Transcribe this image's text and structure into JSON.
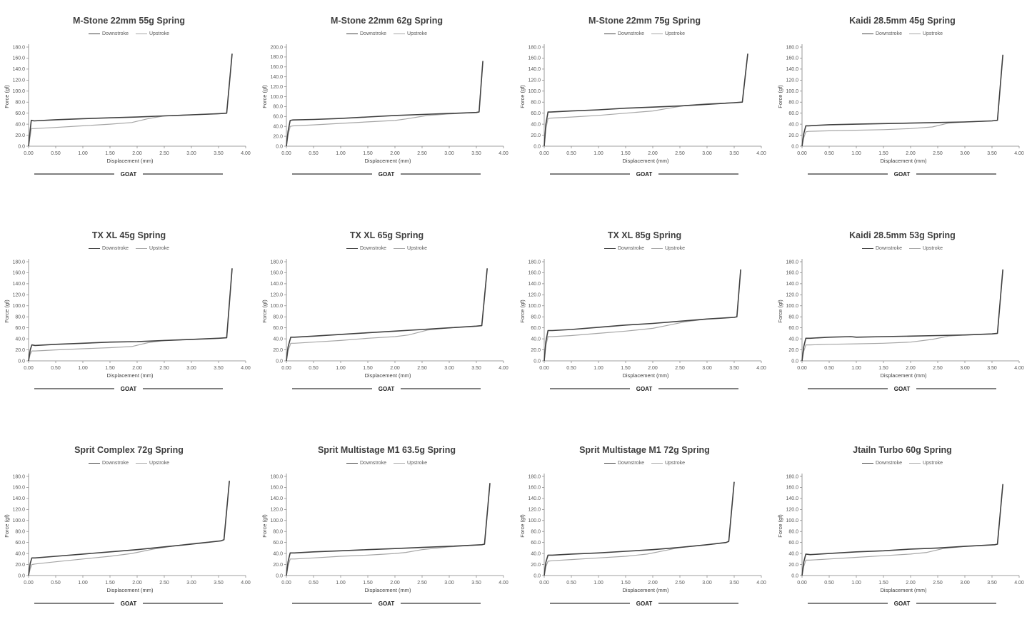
{
  "legend": {
    "down": "Downstroke",
    "up": "Upstroke"
  },
  "colors": {
    "down": "#404040",
    "up": "#a6a6a6",
    "axis": "#7f7f7f"
  },
  "chart_data": [
    {
      "type": "line",
      "title": "M-Stone 22mm 55g Spring",
      "xlabel": "Displacement (mm)",
      "ylabel": "Force (gf)",
      "footer": "GOAT",
      "xlim": [
        0,
        4
      ],
      "ylim": [
        0,
        180
      ],
      "ystep": 20,
      "xticks": [
        "0.00",
        "0.50",
        "1.00",
        "1.50",
        "2.00",
        "2.50",
        "3.00",
        "3.50",
        "4.00"
      ],
      "series": [
        {
          "name": "Downstroke",
          "x": [
            0,
            0.03,
            0.05,
            0.1,
            0.5,
            1.0,
            1.5,
            2.0,
            2.5,
            3.0,
            3.5,
            3.65,
            3.75
          ],
          "y": [
            0,
            30,
            47,
            46,
            48,
            50,
            51.5,
            53,
            55,
            57,
            59,
            60,
            168
          ]
        },
        {
          "name": "Upstroke",
          "x": [
            0,
            0.03,
            0.05,
            0.1,
            0.5,
            1.0,
            1.5,
            1.9,
            2.2,
            2.5,
            3.0,
            3.5,
            3.65,
            3.75
          ],
          "y": [
            0,
            18,
            32,
            32,
            34,
            37,
            40,
            43,
            50,
            55,
            57,
            59,
            60,
            168
          ]
        }
      ]
    },
    {
      "type": "line",
      "title": "M-Stone 22mm 62g Spring",
      "xlabel": "Displacement (mm)",
      "ylabel": "Force (gf)",
      "footer": "GOAT",
      "xlim": [
        0,
        4
      ],
      "ylim": [
        0,
        200
      ],
      "ystep": 20,
      "xticks": [
        "0.00",
        "0.50",
        "1.00",
        "1.50",
        "2.00",
        "2.50",
        "3.00",
        "3.50",
        "4.00"
      ],
      "series": [
        {
          "name": "Downstroke",
          "x": [
            0,
            0.03,
            0.07,
            0.12,
            0.5,
            1.0,
            1.5,
            2.0,
            2.5,
            3.0,
            3.5,
            3.55,
            3.62
          ],
          "y": [
            0,
            30,
            52,
            53,
            54,
            56,
            59,
            62,
            64,
            66,
            68,
            69,
            172
          ]
        },
        {
          "name": "Upstroke",
          "x": [
            0,
            0.03,
            0.07,
            0.12,
            0.5,
            1.0,
            1.5,
            2.0,
            2.2,
            2.6,
            3.0,
            3.5,
            3.55,
            3.62
          ],
          "y": [
            0,
            22,
            40,
            41,
            43,
            46,
            49,
            52,
            55,
            62,
            65,
            68,
            69,
            172
          ]
        }
      ]
    },
    {
      "type": "line",
      "title": "M-Stone 22mm 75g Spring",
      "xlabel": "Displacement (mm)",
      "ylabel": "Force (gf)",
      "footer": "GOAT",
      "xlim": [
        0,
        4
      ],
      "ylim": [
        0,
        180
      ],
      "ystep": 20,
      "xticks": [
        "0.00",
        "0.50",
        "1.00",
        "1.50",
        "2.00",
        "2.50",
        "3.00",
        "3.50",
        "4.00"
      ],
      "series": [
        {
          "name": "Downstroke",
          "x": [
            0,
            0.03,
            0.07,
            0.12,
            0.5,
            1.0,
            1.5,
            2.0,
            2.5,
            3.0,
            3.5,
            3.65,
            3.75
          ],
          "y": [
            0,
            40,
            62,
            62,
            64,
            66,
            69,
            71,
            73,
            76,
            79,
            80,
            168
          ]
        },
        {
          "name": "Upstroke",
          "x": [
            0,
            0.03,
            0.07,
            0.12,
            0.5,
            1.0,
            1.5,
            2.0,
            2.3,
            2.6,
            3.0,
            3.5,
            3.65,
            3.75
          ],
          "y": [
            0,
            32,
            50,
            51,
            53,
            56,
            60,
            64,
            69,
            74,
            77,
            79,
            80,
            168
          ]
        }
      ]
    },
    {
      "type": "line",
      "title": "Kaidi 28.5mm 45g Spring",
      "xlabel": "Displacement (mm)",
      "ylabel": "Force (gf)",
      "footer": "GOAT",
      "xlim": [
        0,
        4
      ],
      "ylim": [
        0,
        180
      ],
      "ystep": 20,
      "xticks": [
        "0.00",
        "0.50",
        "1.00",
        "1.50",
        "2.00",
        "2.50",
        "3.00",
        "3.50",
        "4.00"
      ],
      "series": [
        {
          "name": "Downstroke",
          "x": [
            0,
            0.03,
            0.07,
            0.12,
            0.5,
            1.0,
            1.5,
            2.0,
            2.5,
            3.0,
            3.5,
            3.6,
            3.7
          ],
          "y": [
            0,
            22,
            37,
            37,
            39,
            40,
            41,
            42,
            43,
            44,
            46,
            47,
            166
          ]
        },
        {
          "name": "Upstroke",
          "x": [
            0,
            0.03,
            0.07,
            0.12,
            0.5,
            1.0,
            1.5,
            2.0,
            2.4,
            2.7,
            3.0,
            3.5,
            3.6,
            3.7
          ],
          "y": [
            0,
            15,
            26,
            27,
            28,
            29,
            30,
            32,
            35,
            42,
            44,
            46,
            47,
            166
          ]
        }
      ]
    },
    {
      "type": "line",
      "title": "TX XL 45g Spring",
      "xlabel": "Displacement (mm)",
      "ylabel": "Force (gf)",
      "footer": "GOAT",
      "xlim": [
        0,
        4
      ],
      "ylim": [
        0,
        180
      ],
      "ystep": 20,
      "xticks": [
        "0.00",
        "0.50",
        "1.00",
        "1.50",
        "2.00",
        "2.50",
        "3.00",
        "3.50",
        "4.00"
      ],
      "series": [
        {
          "name": "Downstroke",
          "x": [
            0,
            0.03,
            0.06,
            0.12,
            0.5,
            1.0,
            1.5,
            2.0,
            2.5,
            3.0,
            3.5,
            3.65,
            3.75
          ],
          "y": [
            0,
            20,
            29,
            28,
            30,
            32,
            34,
            35,
            37,
            39,
            41,
            42,
            168
          ]
        },
        {
          "name": "Upstroke",
          "x": [
            0,
            0.03,
            0.06,
            0.12,
            0.5,
            1.0,
            1.5,
            1.9,
            2.2,
            2.5,
            3.0,
            3.5,
            3.65,
            3.75
          ],
          "y": [
            0,
            12,
            18,
            18,
            20,
            22,
            24,
            26,
            33,
            37,
            39,
            41,
            42,
            168
          ]
        }
      ]
    },
    {
      "type": "line",
      "title": "TX XL 65g Spring",
      "xlabel": "Displacement (mm)",
      "ylabel": "Force (gf)",
      "footer": "GOAT",
      "xlim": [
        0,
        4
      ],
      "ylim": [
        0,
        180
      ],
      "ystep": 20,
      "xticks": [
        "0.00",
        "0.50",
        "1.00",
        "1.50",
        "2.00",
        "2.50",
        "3.00",
        "3.50",
        "4.00"
      ],
      "series": [
        {
          "name": "Downstroke",
          "x": [
            0,
            0.03,
            0.08,
            0.15,
            0.5,
            1.0,
            1.5,
            2.0,
            2.5,
            3.0,
            3.5,
            3.6,
            3.7
          ],
          "y": [
            0,
            25,
            43,
            43,
            45,
            48,
            51,
            54,
            57,
            60,
            63,
            64,
            168
          ]
        },
        {
          "name": "Upstroke",
          "x": [
            0,
            0.03,
            0.08,
            0.15,
            0.5,
            1.0,
            1.5,
            2.0,
            2.25,
            2.6,
            3.0,
            3.5,
            3.6,
            3.7
          ],
          "y": [
            0,
            18,
            32,
            32,
            34,
            37,
            41,
            44,
            47,
            56,
            60,
            63,
            64,
            168
          ]
        }
      ]
    },
    {
      "type": "line",
      "title": "TX XL 85g Spring",
      "xlabel": "Displacement (mm)",
      "ylabel": "Force (gf)",
      "footer": "GOAT",
      "xlim": [
        0,
        4
      ],
      "ylim": [
        0,
        180
      ],
      "ystep": 20,
      "xticks": [
        "0.00",
        "0.50",
        "1.00",
        "1.50",
        "2.00",
        "2.50",
        "3.00",
        "3.50",
        "4.00"
      ],
      "series": [
        {
          "name": "Downstroke",
          "x": [
            0,
            0.03,
            0.07,
            0.15,
            0.5,
            1.0,
            1.5,
            2.0,
            2.5,
            3.0,
            3.5,
            3.55,
            3.62
          ],
          "y": [
            0,
            35,
            55,
            55,
            57,
            61,
            65,
            68,
            72,
            76,
            79,
            80,
            166
          ]
        },
        {
          "name": "Upstroke",
          "x": [
            0,
            0.03,
            0.07,
            0.15,
            0.5,
            1.0,
            1.5,
            2.0,
            2.3,
            2.6,
            3.0,
            3.5,
            3.55,
            3.62
          ],
          "y": [
            0,
            28,
            44,
            44,
            46,
            50,
            54,
            59,
            65,
            71,
            76,
            79,
            80,
            166
          ]
        }
      ]
    },
    {
      "type": "line",
      "title": "Kaidi 28.5mm 53g Spring",
      "xlabel": "Displacement (mm)",
      "ylabel": "Force (gf)",
      "footer": "GOAT",
      "xlim": [
        0,
        4
      ],
      "ylim": [
        0,
        180
      ],
      "ystep": 20,
      "xticks": [
        "0.00",
        "0.50",
        "1.00",
        "1.50",
        "2.00",
        "2.50",
        "3.00",
        "3.50",
        "4.00"
      ],
      "series": [
        {
          "name": "Downstroke",
          "x": [
            0,
            0.03,
            0.07,
            0.15,
            0.5,
            0.9,
            1.0,
            1.5,
            2.0,
            2.5,
            3.0,
            3.5,
            3.6,
            3.7
          ],
          "y": [
            0,
            25,
            41,
            41,
            43,
            44,
            43,
            44,
            45,
            46,
            47,
            49,
            50,
            166
          ]
        },
        {
          "name": "Upstroke",
          "x": [
            0,
            0.03,
            0.07,
            0.15,
            0.5,
            1.0,
            1.5,
            2.0,
            2.4,
            2.7,
            3.0,
            3.5,
            3.6,
            3.7
          ],
          "y": [
            0,
            17,
            29,
            29,
            30,
            31,
            32,
            34,
            39,
            45,
            47,
            49,
            50,
            166
          ]
        }
      ]
    },
    {
      "type": "line",
      "title": "Sprit Complex 72g Spring",
      "xlabel": "Displacement (mm)",
      "ylabel": "Force (gf)",
      "footer": "GOAT",
      "xlim": [
        0,
        4
      ],
      "ylim": [
        0,
        180
      ],
      "ystep": 20,
      "xticks": [
        "0.00",
        "0.50",
        "1.00",
        "1.50",
        "2.00",
        "2.50",
        "3.00",
        "3.50",
        "4.00"
      ],
      "series": [
        {
          "name": "Downstroke",
          "x": [
            0,
            0.03,
            0.06,
            0.12,
            0.5,
            1.0,
            1.5,
            2.0,
            2.5,
            3.0,
            3.55,
            3.6,
            3.7
          ],
          "y": [
            0,
            22,
            32,
            32,
            35,
            39,
            43,
            47,
            52,
            57,
            63,
            65,
            172
          ]
        },
        {
          "name": "Upstroke",
          "x": [
            0,
            0.03,
            0.06,
            0.12,
            0.5,
            1.0,
            1.5,
            1.9,
            2.3,
            2.7,
            3.0,
            3.55,
            3.6,
            3.7
          ],
          "y": [
            0,
            12,
            20,
            21,
            25,
            30,
            35,
            40,
            48,
            54,
            58,
            63,
            65,
            172
          ]
        }
      ]
    },
    {
      "type": "line",
      "title": "Sprit Multistage M1 63.5g Spring",
      "xlabel": "Displacement (mm)",
      "ylabel": "Force (gf)",
      "footer": "GOAT",
      "xlim": [
        0,
        4
      ],
      "ylim": [
        0,
        180
      ],
      "ystep": 20,
      "xticks": [
        "0.00",
        "0.50",
        "1.00",
        "1.50",
        "2.00",
        "2.50",
        "3.00",
        "3.50",
        "4.00"
      ],
      "series": [
        {
          "name": "Downstroke",
          "x": [
            0,
            0.03,
            0.07,
            0.15,
            0.5,
            1.0,
            1.5,
            2.0,
            2.5,
            3.0,
            3.6,
            3.65,
            3.75
          ],
          "y": [
            0,
            25,
            41,
            41,
            43,
            45,
            47,
            49,
            51,
            53,
            56,
            57,
            168
          ]
        },
        {
          "name": "Upstroke",
          "x": [
            0,
            0.03,
            0.07,
            0.15,
            0.5,
            1.0,
            1.5,
            2.0,
            2.2,
            2.5,
            3.0,
            3.6,
            3.65,
            3.75
          ],
          "y": [
            0,
            17,
            30,
            30,
            32,
            35,
            37,
            40,
            42,
            47,
            52,
            56,
            57,
            168
          ]
        }
      ]
    },
    {
      "type": "line",
      "title": "Sprit Multistage M1 72g Spring",
      "xlabel": "Displacement (mm)",
      "ylabel": "Force (gf)",
      "footer": "GOAT",
      "xlim": [
        0,
        4
      ],
      "ylim": [
        0,
        180
      ],
      "ystep": 20,
      "xticks": [
        "0.00",
        "0.50",
        "1.00",
        "1.50",
        "2.00",
        "2.50",
        "3.00",
        "3.50",
        "4.00"
      ],
      "series": [
        {
          "name": "Downstroke",
          "x": [
            0,
            0.03,
            0.07,
            0.15,
            0.5,
            1.0,
            1.5,
            2.0,
            2.5,
            3.0,
            3.35,
            3.4,
            3.5
          ],
          "y": [
            0,
            24,
            37,
            37,
            39,
            41,
            44,
            47,
            51,
            56,
            60,
            62,
            170
          ]
        },
        {
          "name": "Upstroke",
          "x": [
            0,
            0.03,
            0.07,
            0.15,
            0.5,
            1.0,
            1.5,
            1.9,
            2.2,
            2.5,
            3.0,
            3.35,
            3.4,
            3.5
          ],
          "y": [
            0,
            16,
            26,
            27,
            29,
            32,
            35,
            39,
            45,
            51,
            56,
            60,
            62,
            170
          ]
        }
      ]
    },
    {
      "type": "line",
      "title": "Jtailn Turbo 60g Spring",
      "xlabel": "Displacement (mm)",
      "ylabel": "Force (gf)",
      "footer": "GOAT",
      "xlim": [
        0,
        4
      ],
      "ylim": [
        0,
        180
      ],
      "ystep": 20,
      "xticks": [
        "0.00",
        "0.50",
        "1.00",
        "1.50",
        "2.00",
        "2.50",
        "3.00",
        "3.50",
        "4.00"
      ],
      "series": [
        {
          "name": "Downstroke",
          "x": [
            0,
            0.03,
            0.07,
            0.15,
            0.5,
            1.0,
            1.5,
            2.0,
            2.5,
            3.0,
            3.55,
            3.6,
            3.7
          ],
          "y": [
            0,
            24,
            39,
            38,
            40,
            43,
            45,
            48,
            50,
            53,
            56,
            57,
            166
          ]
        },
        {
          "name": "Upstroke",
          "x": [
            0,
            0.03,
            0.07,
            0.15,
            0.5,
            1.0,
            1.5,
            2.0,
            2.3,
            2.6,
            3.0,
            3.55,
            3.6,
            3.7
          ],
          "y": [
            0,
            16,
            28,
            28,
            30,
            33,
            36,
            39,
            42,
            49,
            53,
            56,
            57,
            166
          ]
        }
      ]
    }
  ]
}
